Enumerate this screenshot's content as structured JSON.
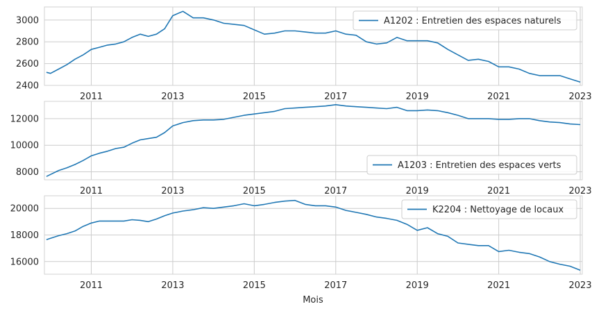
{
  "chart_data": [
    {
      "type": "line",
      "xlabel": "",
      "ylabel": "",
      "xlim": [
        2009.85,
        2023.05
      ],
      "ylim": [
        2400,
        3120
      ],
      "xticks": [
        2011,
        2013,
        2015,
        2017,
        2019,
        2021,
        2023
      ],
      "xtick_labels": [
        "2011",
        "2013",
        "2015",
        "2017",
        "2019",
        "2021",
        "2023"
      ],
      "yticks": [
        2400,
        2600,
        2800,
        3000
      ],
      "ytick_labels": [
        "2400",
        "2600",
        "2800",
        "3000"
      ],
      "grid": true,
      "legend_position": "upper-right",
      "series": [
        {
          "name": "A1202 : Entretien des espaces naturels",
          "color": "#1f77b4",
          "x": [
            2009.9,
            2010.0,
            2010.2,
            2010.4,
            2010.6,
            2010.8,
            2011.0,
            2011.2,
            2011.4,
            2011.6,
            2011.8,
            2012.0,
            2012.2,
            2012.4,
            2012.6,
            2012.8,
            2013.0,
            2013.25,
            2013.5,
            2013.75,
            2014.0,
            2014.25,
            2014.5,
            2014.75,
            2015.0,
            2015.25,
            2015.5,
            2015.75,
            2016.0,
            2016.25,
            2016.5,
            2016.75,
            2017.0,
            2017.25,
            2017.5,
            2017.75,
            2018.0,
            2018.25,
            2018.5,
            2018.75,
            2019.0,
            2019.25,
            2019.5,
            2019.75,
            2020.0,
            2020.25,
            2020.5,
            2020.75,
            2021.0,
            2021.25,
            2021.5,
            2021.75,
            2022.0,
            2022.25,
            2022.5,
            2022.75,
            2023.0
          ],
          "y": [
            2520,
            2510,
            2550,
            2590,
            2640,
            2680,
            2730,
            2750,
            2770,
            2780,
            2800,
            2840,
            2870,
            2850,
            2870,
            2920,
            3040,
            3080,
            3020,
            3020,
            3000,
            2970,
            2960,
            2950,
            2910,
            2870,
            2880,
            2900,
            2900,
            2890,
            2880,
            2880,
            2900,
            2870,
            2860,
            2800,
            2780,
            2790,
            2840,
            2810,
            2810,
            2810,
            2790,
            2730,
            2680,
            2630,
            2640,
            2620,
            2570,
            2570,
            2550,
            2510,
            2490,
            2490,
            2490,
            2460,
            2430
          ]
        }
      ]
    },
    {
      "type": "line",
      "xlabel": "",
      "ylabel": "",
      "xlim": [
        2009.85,
        2023.05
      ],
      "ylim": [
        7400,
        13300
      ],
      "xticks": [
        2011,
        2013,
        2015,
        2017,
        2019,
        2021,
        2023
      ],
      "xtick_labels": [
        "2011",
        "2013",
        "2015",
        "2017",
        "2019",
        "2021",
        "2023"
      ],
      "yticks": [
        8000,
        10000,
        12000
      ],
      "ytick_labels": [
        "8000",
        "10000",
        "12000"
      ],
      "grid": true,
      "legend_position": "lower-right",
      "series": [
        {
          "name": "A1203 : Entretien des espaces verts",
          "color": "#1f77b4",
          "x": [
            2009.9,
            2010.0,
            2010.2,
            2010.4,
            2010.6,
            2010.8,
            2011.0,
            2011.2,
            2011.4,
            2011.6,
            2011.8,
            2012.0,
            2012.2,
            2012.4,
            2012.6,
            2012.8,
            2013.0,
            2013.25,
            2013.5,
            2013.75,
            2014.0,
            2014.25,
            2014.5,
            2014.75,
            2015.0,
            2015.25,
            2015.5,
            2015.75,
            2016.0,
            2016.25,
            2016.5,
            2016.75,
            2017.0,
            2017.25,
            2017.5,
            2017.75,
            2018.0,
            2018.25,
            2018.5,
            2018.75,
            2019.0,
            2019.25,
            2019.5,
            2019.75,
            2020.0,
            2020.25,
            2020.5,
            2020.75,
            2021.0,
            2021.25,
            2021.5,
            2021.75,
            2022.0,
            2022.25,
            2022.5,
            2022.75,
            2023.0
          ],
          "y": [
            7650,
            7800,
            8100,
            8300,
            8550,
            8850,
            9200,
            9400,
            9550,
            9750,
            9850,
            10150,
            10400,
            10500,
            10600,
            10950,
            11450,
            11700,
            11850,
            11900,
            11900,
            11950,
            12100,
            12250,
            12350,
            12450,
            12550,
            12750,
            12800,
            12850,
            12900,
            12950,
            13050,
            12950,
            12900,
            12850,
            12800,
            12750,
            12850,
            12600,
            12600,
            12650,
            12600,
            12450,
            12250,
            12000,
            12000,
            12000,
            11950,
            11950,
            12000,
            12000,
            11850,
            11750,
            11700,
            11600,
            11550
          ]
        }
      ]
    },
    {
      "type": "line",
      "xlabel": "Mois",
      "ylabel": "",
      "xlim": [
        2009.85,
        2023.05
      ],
      "ylim": [
        15050,
        20950
      ],
      "xticks": [
        2011,
        2013,
        2015,
        2017,
        2019,
        2021,
        2023
      ],
      "xtick_labels": [
        "2011",
        "2013",
        "2015",
        "2017",
        "2019",
        "2021",
        "2023"
      ],
      "yticks": [
        16000,
        18000,
        20000
      ],
      "ytick_labels": [
        "16000",
        "18000",
        "20000"
      ],
      "grid": true,
      "legend_position": "upper-right",
      "series": [
        {
          "name": "K2204 : Nettoyage de locaux",
          "color": "#1f77b4",
          "x": [
            2009.9,
            2010.0,
            2010.2,
            2010.4,
            2010.6,
            2010.8,
            2011.0,
            2011.2,
            2011.4,
            2011.6,
            2011.8,
            2012.0,
            2012.2,
            2012.4,
            2012.6,
            2012.8,
            2013.0,
            2013.25,
            2013.5,
            2013.75,
            2014.0,
            2014.25,
            2014.5,
            2014.75,
            2015.0,
            2015.25,
            2015.5,
            2015.75,
            2016.0,
            2016.25,
            2016.5,
            2016.75,
            2017.0,
            2017.25,
            2017.5,
            2017.75,
            2018.0,
            2018.25,
            2018.5,
            2018.75,
            2019.0,
            2019.25,
            2019.5,
            2019.75,
            2020.0,
            2020.25,
            2020.5,
            2020.75,
            2021.0,
            2021.25,
            2021.5,
            2021.75,
            2022.0,
            2022.25,
            2022.5,
            2022.75,
            2023.0
          ],
          "y": [
            17650,
            17750,
            17950,
            18100,
            18300,
            18650,
            18900,
            19050,
            19050,
            19050,
            19050,
            19150,
            19100,
            19000,
            19200,
            19450,
            19650,
            19800,
            19900,
            20050,
            20000,
            20100,
            20200,
            20350,
            20200,
            20300,
            20450,
            20550,
            20600,
            20300,
            20200,
            20200,
            20100,
            19850,
            19700,
            19550,
            19350,
            19250,
            19100,
            18800,
            18350,
            18550,
            18100,
            17900,
            17400,
            17300,
            17200,
            17200,
            16750,
            16850,
            16700,
            16600,
            16350,
            16000,
            15800,
            15650,
            15350
          ]
        }
      ]
    }
  ]
}
